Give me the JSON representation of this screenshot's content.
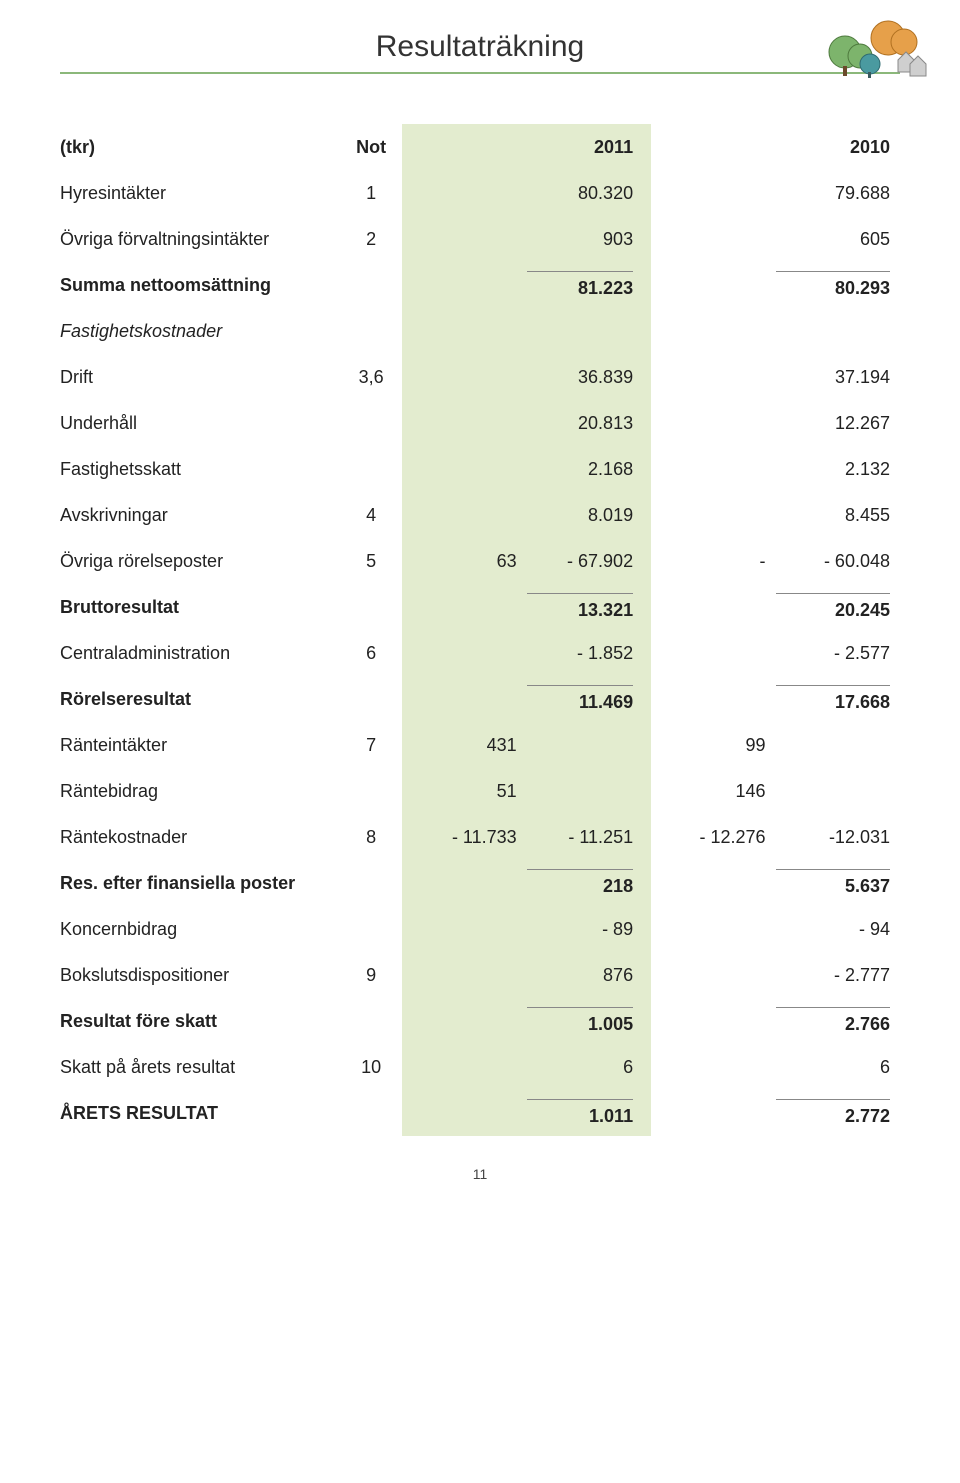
{
  "title": "Resultaträkning",
  "page_number": "11",
  "columns": {
    "c0": "(tkr)",
    "c1": "Not",
    "c2": "2011",
    "c3": "2010"
  },
  "rows": [
    {
      "key": "hyresintakter",
      "label": "Hyresintäkter",
      "not": "1",
      "b": "80.320",
      "d": "79.688"
    },
    {
      "key": "ovriga_forvaltning",
      "label": "Övriga förvaltningsintäkter",
      "not": "2",
      "b": "903",
      "d": "605"
    },
    {
      "key": "summa_netto",
      "label": "Summa nettoomsättning",
      "b": "81.223",
      "d": "80.293",
      "bold": true,
      "rule": true
    },
    {
      "key": "fastighetskostnader",
      "label": "Fastighetskostnader",
      "italic": true
    },
    {
      "key": "drift",
      "label": "Drift",
      "not": "3,6",
      "b": "36.839",
      "d": "37.194"
    },
    {
      "key": "underhall",
      "label": "Underhåll",
      "b": "20.813",
      "d": "12.267"
    },
    {
      "key": "fastighetsskatt",
      "label": "Fastighetsskatt",
      "b": "2.168",
      "d": "2.132"
    },
    {
      "key": "avskrivningar",
      "label": "Avskrivningar",
      "not": "4",
      "b": "8.019",
      "d": "8.455"
    },
    {
      "key": "ovriga_rorelse",
      "label": "Övriga rörelseposter",
      "not": "5",
      "a": "63",
      "b": "- 67.902",
      "c": "-",
      "d": "- 60.048"
    },
    {
      "key": "bruttoresultat",
      "label": "Bruttoresultat",
      "b": "13.321",
      "d": "20.245",
      "bold": true,
      "rule": true
    },
    {
      "key": "centraladmin",
      "label": "Centraladministration",
      "not": "6",
      "b": "- 1.852",
      "d": "- 2.577"
    },
    {
      "key": "rorelseresultat",
      "label": "Rörelseresultat",
      "b": "11.469",
      "d": "17.668",
      "bold": true,
      "rule": true
    },
    {
      "key": "ranteintakter",
      "label": "Ränteintäkter",
      "not": "7",
      "a": "431",
      "c": "99"
    },
    {
      "key": "rantebidrag",
      "label": "Räntebidrag",
      "a": "51",
      "c": "146"
    },
    {
      "key": "rantekostnader",
      "label": "Räntekostnader",
      "not": "8",
      "a": "- 11.733",
      "b": "- 11.251",
      "c": "- 12.276",
      "d": "-12.031"
    },
    {
      "key": "res_finans",
      "label": "Res. efter finansiella poster",
      "b": "218",
      "d": "5.637",
      "bold": true,
      "rule": true
    },
    {
      "key": "koncernbidrag",
      "label": "Koncernbidrag",
      "b": "- 89",
      "d": "- 94"
    },
    {
      "key": "bokslutsdisp",
      "label": "Bokslutsdispositioner",
      "not": "9",
      "b": "876",
      "d": "- 2.777"
    },
    {
      "key": "resultat_fore_skatt",
      "label": "Resultat före skatt",
      "b": "1.005",
      "d": "2.766",
      "bold": true,
      "rule": true
    },
    {
      "key": "skatt",
      "label": "Skatt på årets resultat",
      "not": "10",
      "b": "6",
      "d": "6"
    },
    {
      "key": "arets_resultat",
      "label": "ÅRETS RESULTAT",
      "b": "1.011",
      "d": "2.772",
      "bold": true,
      "rule": true
    }
  ],
  "colors": {
    "accent_rule": "#8bb87a",
    "highlight_bg": "#e3eccf",
    "tree_green": "#7db46c",
    "tree_orange": "#e6a04a",
    "tree_teal": "#4a9aa0",
    "house_grey": "#cfcfcf"
  }
}
